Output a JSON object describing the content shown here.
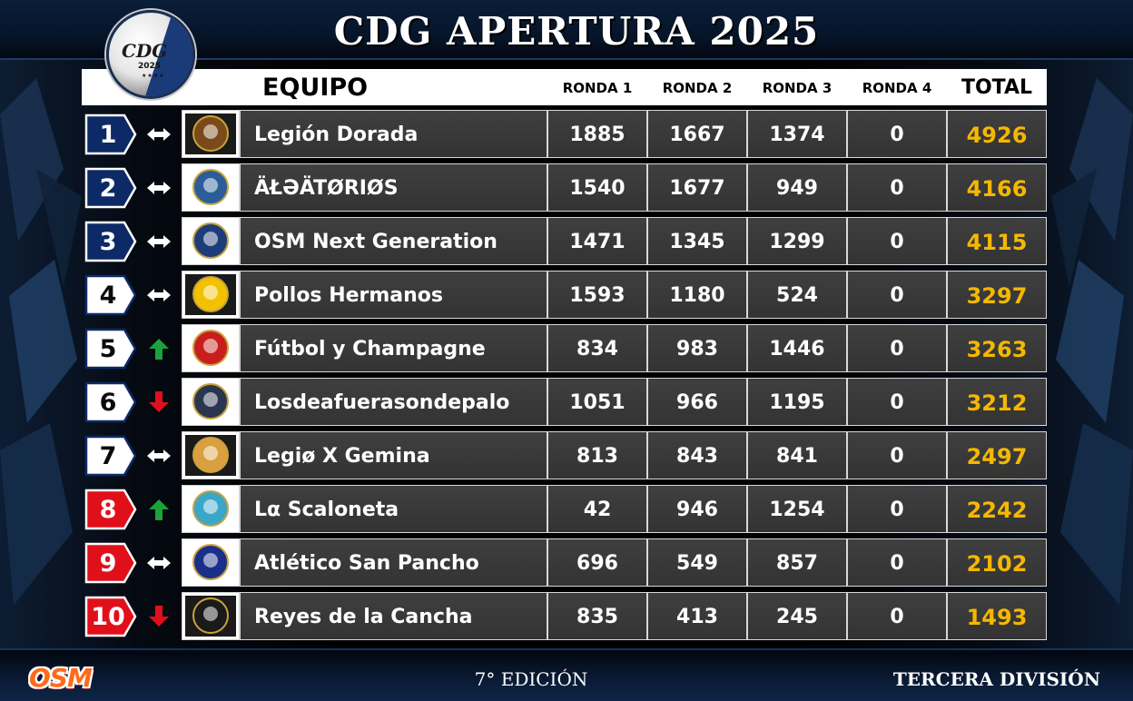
{
  "title": "CDG APERTURA 2025",
  "logo": {
    "text": "CDG",
    "year": "2025",
    "stars": "★★★★"
  },
  "header": {
    "equipo": "EQUIPO",
    "ronda1": "RONDA 1",
    "ronda2": "RONDA 2",
    "ronda3": "RONDA 3",
    "ronda4": "RONDA 4",
    "total": "TOTAL"
  },
  "colors": {
    "zone_blue": "#0d2a66",
    "zone_white": "#ffffff",
    "zone_red": "#e0101a",
    "total_text": "#f5b800",
    "arrow_up": "#1ba33a",
    "arrow_down": "#e0101a"
  },
  "rows": [
    {
      "pos": "1",
      "zone": "blue",
      "move": "same",
      "team": "Legión Dorada",
      "crest": "crest-legion-dorada",
      "r1": "1885",
      "r2": "1667",
      "r3": "1374",
      "r4": "0",
      "total": "4926"
    },
    {
      "pos": "2",
      "zone": "blue",
      "move": "same",
      "team": "ÄŁƏÄTØRIØS",
      "crest": "crest-aleatorios",
      "r1": "1540",
      "r2": "1677",
      "r3": "949",
      "r4": "0",
      "total": "4166"
    },
    {
      "pos": "3",
      "zone": "blue",
      "move": "same",
      "team": "OSM Next Generation",
      "crest": "crest-osm-next-gen",
      "r1": "1471",
      "r2": "1345",
      "r3": "1299",
      "r4": "0",
      "total": "4115"
    },
    {
      "pos": "4",
      "zone": "white",
      "move": "same",
      "team": "Pollos Hermanos",
      "crest": "crest-pollos-hermanos",
      "r1": "1593",
      "r2": "1180",
      "r3": "524",
      "r4": "0",
      "total": "3297"
    },
    {
      "pos": "5",
      "zone": "white",
      "move": "up",
      "team": "Fútbol y Champagne",
      "crest": "crest-futbol-champagne",
      "r1": "834",
      "r2": "983",
      "r3": "1446",
      "r4": "0",
      "total": "3263"
    },
    {
      "pos": "6",
      "zone": "white",
      "move": "down",
      "team": "Losdeafuerasondepalo",
      "crest": "crest-losdeafuera",
      "r1": "1051",
      "r2": "966",
      "r3": "1195",
      "r4": "0",
      "total": "3212"
    },
    {
      "pos": "7",
      "zone": "white",
      "move": "same",
      "team": "Legiø X Gemina",
      "crest": "crest-legio-x-gemina",
      "r1": "813",
      "r2": "843",
      "r3": "841",
      "r4": "0",
      "total": "2497"
    },
    {
      "pos": "8",
      "zone": "red",
      "move": "up",
      "team": "Lα Scaloneta",
      "crest": "crest-scaloneta",
      "r1": "42",
      "r2": "946",
      "r3": "1254",
      "r4": "0",
      "total": "2242"
    },
    {
      "pos": "9",
      "zone": "red",
      "move": "same",
      "team": "Atlético San Pancho",
      "crest": "crest-san-pancho",
      "r1": "696",
      "r2": "549",
      "r3": "857",
      "r4": "0",
      "total": "2102"
    },
    {
      "pos": "10",
      "zone": "red",
      "move": "down",
      "team": "Reyes de la Cancha",
      "crest": "crest-reyes-cancha",
      "r1": "835",
      "r2": "413",
      "r3": "245",
      "r4": "0",
      "total": "1493"
    }
  ],
  "footer": {
    "brand": "OSM",
    "edition": "7° EDICIÓN",
    "division": "TERCERA DIVISIÓN"
  }
}
